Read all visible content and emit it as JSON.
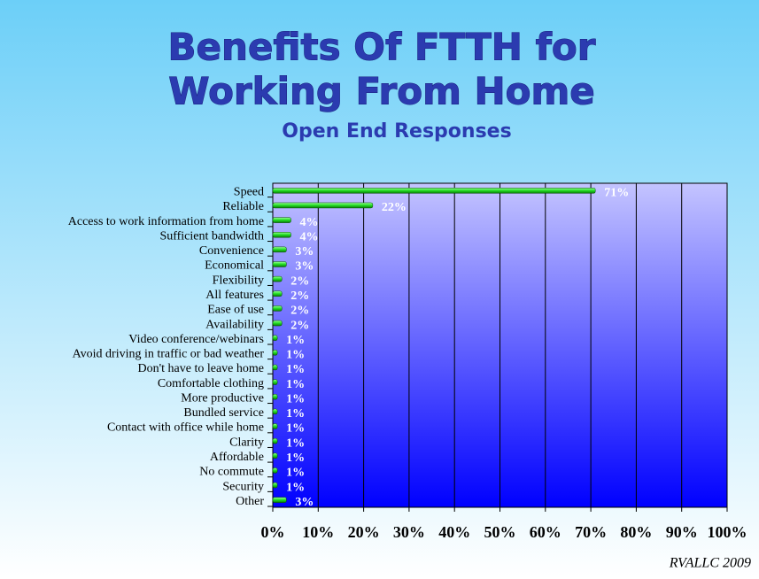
{
  "chart_data": {
    "type": "bar",
    "orientation": "horizontal",
    "title": [
      "Benefits Of FTTH for",
      "Working From Home"
    ],
    "subtitle": "Open End Responses",
    "categories": [
      "Speed",
      "Reliable",
      "Access to work information from home",
      "Sufficient bandwidth",
      "Convenience",
      "Economical",
      "Flexibility",
      "All features",
      "Ease of use",
      "Availability",
      "Video conference/webinars",
      "Avoid driving in traffic or bad weather",
      "Don't have to leave home",
      "Comfortable clothing",
      "More productive",
      "Bundled service",
      "Contact with office while home",
      "Clarity",
      "Affordable",
      "No commute",
      "Security",
      "Other"
    ],
    "values": [
      71,
      22,
      4,
      4,
      3,
      3,
      2,
      2,
      2,
      2,
      1,
      1,
      1,
      1,
      1,
      1,
      1,
      1,
      1,
      1,
      1,
      3
    ],
    "value_labels": [
      "71%",
      "22%",
      "4%",
      "4%",
      "3%",
      "3%",
      "2%",
      "2%",
      "2%",
      "2%",
      "1%",
      "1%",
      "1%",
      "1%",
      "1%",
      "1%",
      "1%",
      "1%",
      "1%",
      "1%",
      "1%",
      "3%"
    ],
    "color": "#22dd22",
    "xlim": [
      0,
      100
    ],
    "xticks": [
      {
        "value": 0,
        "label": "0%"
      },
      {
        "value": 10,
        "label": "10%"
      },
      {
        "value": 20,
        "label": "20%"
      },
      {
        "value": 30,
        "label": "30%"
      },
      {
        "value": 40,
        "label": "40%"
      },
      {
        "value": 50,
        "label": "50%"
      },
      {
        "value": 60,
        "label": "60%"
      },
      {
        "value": 70,
        "label": "70%"
      },
      {
        "value": 80,
        "label": "80%"
      },
      {
        "value": 90,
        "label": "90%"
      },
      {
        "value": 100,
        "label": "100%"
      }
    ],
    "grid": true,
    "annotation": "RVALLC  2009"
  }
}
